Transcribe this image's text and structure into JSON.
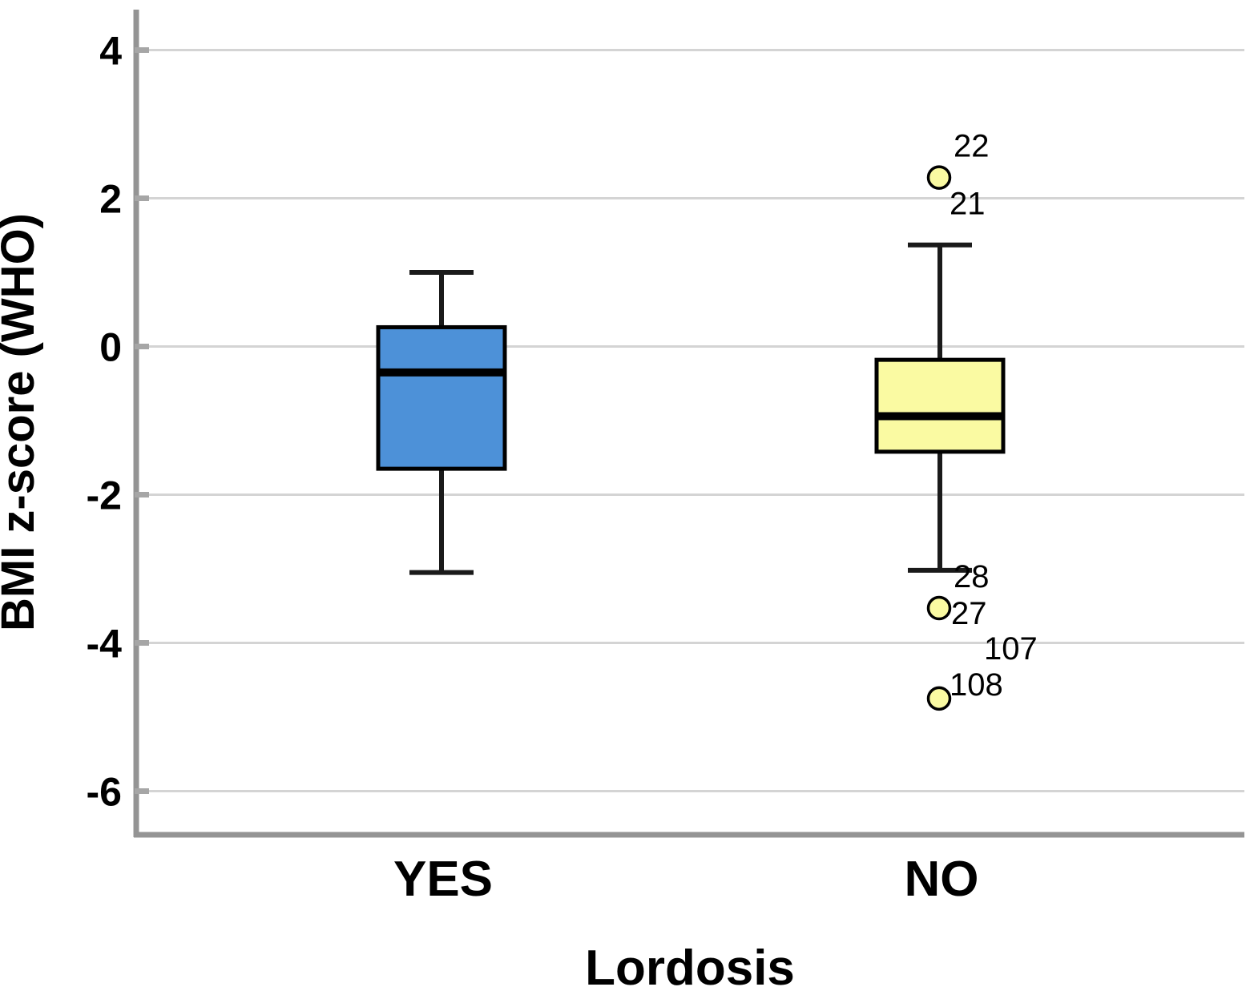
{
  "chart_data": {
    "type": "boxplot",
    "title": "",
    "xlabel": "Lordosis",
    "ylabel": "BMI z-score (WHO)",
    "ylim": [
      -6.6,
      4.55
    ],
    "yticks": [
      4,
      2,
      0,
      -2,
      -4,
      -6
    ],
    "grid": "horizontal-only",
    "legend": "none",
    "categories": [
      "YES",
      "NO"
    ],
    "series": [
      {
        "category": "YES",
        "fill_color": "#4D91D8",
        "whisker_low": -3.05,
        "q1": -1.65,
        "median": -0.35,
        "q3": 0.26,
        "whisker_high": 1.0,
        "outliers": []
      },
      {
        "category": "NO",
        "fill_color": "#FAFAA2",
        "whisker_low": -3.02,
        "q1": -1.42,
        "median": -0.94,
        "q3": -0.18,
        "whisker_high": 1.37,
        "outliers": [
          {
            "value": 2.28,
            "case_labels": [
              {
                "text": "22",
                "placement": "above-right"
              },
              {
                "text": "21",
                "placement": "below-right"
              }
            ]
          },
          {
            "value": -3.53,
            "case_labels": [
              {
                "text": "28",
                "placement": "above-right"
              },
              {
                "text": "27",
                "placement": "right"
              }
            ]
          },
          {
            "value": -4.75,
            "case_labels": [
              {
                "text": "107",
                "placement": "far-above-right"
              },
              {
                "text": "108",
                "placement": "right-up"
              }
            ]
          }
        ]
      }
    ],
    "style_colors": {
      "gridline": "#d4d4d4",
      "axis_line": "#949494",
      "box_stroke": "#000000",
      "median_stroke": "#000000",
      "whisker_stroke": "#1a1a1a",
      "outlier_stroke": "#000000"
    }
  }
}
